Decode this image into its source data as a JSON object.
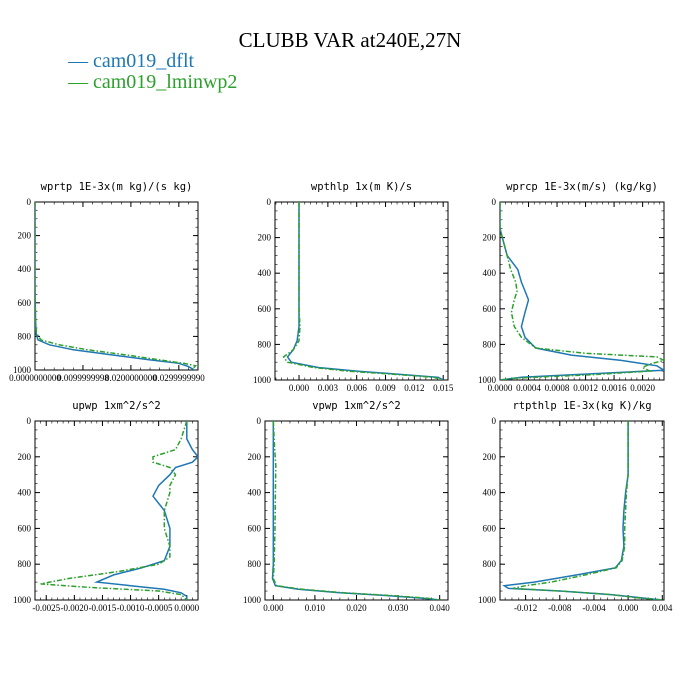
{
  "figure_title": "CLUBB VAR at240E,27N",
  "legend": [
    {
      "label": "cam019_dflt",
      "color": "#1f77b4",
      "dash": "solid"
    },
    {
      "label": "cam019_lminwp2",
      "color": "#2ca02c",
      "dash": "dashdot"
    }
  ],
  "chart_data": [
    {
      "type": "line",
      "title": "wprtp  1E-3x(m kg)/(s kg)",
      "xlim": [
        0,
        0.034
      ],
      "ylim": [
        1000,
        0
      ],
      "xticks": [
        0.0,
        0.0099999998,
        0.02,
        0.029999999
      ],
      "xtick_labels": [
        "0.0000000000",
        "0.0099999998",
        "0.0200000000",
        "0.0299999990"
      ],
      "yticks": [
        0,
        200,
        400,
        600,
        800,
        1000
      ],
      "series": [
        {
          "name": "cam019_dflt",
          "y": [
            0,
            100,
            300,
            500,
            700,
            780,
            820,
            850,
            880,
            910,
            940,
            960,
            980,
            995,
            1000
          ],
          "x": [
            0.0,
            0.0,
            0.0,
            0.0,
            0.0001,
            0.0002,
            0.0006,
            0.003,
            0.008,
            0.016,
            0.024,
            0.03,
            0.032,
            0.033,
            0.033
          ]
        },
        {
          "name": "cam019_lminwp2",
          "y": [
            0,
            100,
            300,
            500,
            700,
            780,
            820,
            850,
            880,
            910,
            940,
            960,
            975,
            990,
            1000
          ],
          "x": [
            0.0,
            0.0,
            0.0,
            0.0,
            0.0001,
            0.0003,
            0.0012,
            0.005,
            0.011,
            0.019,
            0.026,
            0.031,
            0.0335,
            0.033,
            0.033
          ]
        }
      ]
    },
    {
      "type": "line",
      "title": "wpthlp  1x(m K)/s",
      "xlim": [
        -0.0025,
        0.0155
      ],
      "ylim": [
        1000,
        0
      ],
      "xticks": [
        0.0,
        0.003,
        0.006,
        0.009,
        0.012,
        0.015
      ],
      "xtick_labels": [
        "0.000",
        "0.003",
        "0.006",
        "0.009",
        "0.012",
        "0.015"
      ],
      "yticks": [
        0,
        200,
        400,
        600,
        800,
        1000
      ],
      "series": [
        {
          "name": "cam019_dflt",
          "y": [
            0,
            200,
            400,
            600,
            700,
            780,
            830,
            870,
            900,
            930,
            950,
            970,
            985,
            1000
          ],
          "x": [
            0.0,
            0.0,
            0.0,
            0.0,
            0.0,
            -0.0002,
            -0.0006,
            -0.0012,
            -0.0008,
            0.002,
            0.006,
            0.011,
            0.0145,
            0.015
          ]
        },
        {
          "name": "cam019_lminwp2",
          "y": [
            0,
            200,
            400,
            600,
            700,
            780,
            830,
            870,
            900,
            930,
            950,
            970,
            985,
            1000
          ],
          "x": [
            0.0,
            0.0,
            0.0,
            0.0,
            0.0001,
            0.0,
            -0.0006,
            -0.0016,
            -0.0012,
            0.0015,
            0.005,
            0.0105,
            0.014,
            0.015
          ]
        }
      ]
    },
    {
      "type": "line",
      "title": "wprcp  1E-3x(m/s) (kg/kg)",
      "xlim": [
        0,
        0.0023
      ],
      "ylim": [
        1000,
        0
      ],
      "xticks": [
        0.0,
        0.0004,
        0.0008,
        0.0012,
        0.0016,
        0.002
      ],
      "xtick_labels": [
        "0.0000",
        "0.0004",
        "0.0008",
        "0.0012",
        "0.0016",
        "0.0020"
      ],
      "yticks": [
        0,
        200,
        400,
        600,
        800,
        1000
      ],
      "series": [
        {
          "name": "cam019_dflt",
          "y": [
            0,
            150,
            300,
            380,
            450,
            500,
            550,
            620,
            700,
            760,
            820,
            860,
            890,
            920,
            945,
            965,
            985,
            1000
          ],
          "x": [
            0.0,
            0.0,
            0.0001,
            0.00025,
            0.0003,
            0.00035,
            0.0004,
            0.00035,
            0.0003,
            0.00035,
            0.0005,
            0.001,
            0.0017,
            0.0022,
            0.0023,
            0.0013,
            0.0003,
            0.0
          ]
        },
        {
          "name": "cam019_lminwp2",
          "y": [
            0,
            150,
            300,
            380,
            450,
            500,
            550,
            620,
            700,
            760,
            820,
            850,
            870,
            890,
            910,
            930,
            950,
            970,
            990,
            1000
          ],
          "x": [
            0.0,
            0.0,
            0.0001,
            0.00015,
            0.00022,
            0.00024,
            0.0002,
            0.00016,
            0.0002,
            0.0003,
            0.0005,
            0.0012,
            0.0022,
            0.0023,
            0.0021,
            0.002,
            0.0021,
            0.0013,
            0.0002,
            0.0
          ]
        }
      ]
    },
    {
      "type": "line",
      "title": "upwp  1xm^2/s^2",
      "xlim": [
        -0.0027,
        0.0002
      ],
      "ylim": [
        1000,
        0
      ],
      "xticks": [
        -0.0025,
        -0.002,
        -0.0015,
        -0.001,
        -0.0005,
        0.0
      ],
      "xtick_labels": [
        "-0.0025",
        "-0.0020",
        "-0.0015",
        "-0.0010",
        "-0.0005",
        "0.0000"
      ],
      "yticks": [
        0,
        200,
        400,
        600,
        800,
        1000
      ],
      "series": [
        {
          "name": "cam019_dflt",
          "y": [
            0,
            100,
            160,
            200,
            230,
            260,
            300,
            360,
            420,
            500,
            600,
            700,
            780,
            820,
            860,
            900,
            920,
            940,
            960,
            980,
            1000
          ],
          "x": [
            0.0,
            0.0,
            0.0001,
            0.0002,
            0.0001,
            -0.0002,
            -0.0003,
            -0.0005,
            -0.0006,
            -0.0004,
            -0.0003,
            -0.0003,
            -0.0004,
            -0.0008,
            -0.0013,
            -0.0016,
            -0.001,
            -0.0004,
            -0.0001,
            0.0,
            0.0
          ]
        },
        {
          "name": "cam019_lminwp2",
          "y": [
            0,
            100,
            160,
            200,
            230,
            260,
            300,
            360,
            400,
            450,
            500,
            600,
            700,
            760,
            800,
            840,
            880,
            910,
            930,
            950,
            970,
            1000
          ],
          "x": [
            0.0,
            -0.0001,
            -0.0002,
            -0.0006,
            -0.0006,
            -0.0003,
            -0.0002,
            -0.0003,
            -0.0003,
            -0.00035,
            -0.0004,
            -0.0004,
            -0.0003,
            -0.0003,
            -0.0005,
            -0.0012,
            -0.0021,
            -0.0026,
            -0.0017,
            -0.0005,
            -0.0001,
            0.0
          ]
        }
      ]
    },
    {
      "type": "line",
      "title": "vpwp  1xm^2/s^2",
      "xlim": [
        -0.002,
        0.042
      ],
      "ylim": [
        1000,
        0
      ],
      "xticks": [
        0.0,
        0.01,
        0.02,
        0.03,
        0.04
      ],
      "xtick_labels": [
        "0.000",
        "0.010",
        "0.020",
        "0.030",
        "0.040"
      ],
      "yticks": [
        0,
        200,
        400,
        600,
        800,
        1000
      ],
      "series": [
        {
          "name": "cam019_dflt",
          "y": [
            0,
            200,
            400,
            600,
            800,
            880,
            920,
            940,
            960,
            975,
            990,
            1000
          ],
          "x": [
            0.0,
            0.0,
            0.0,
            0.0,
            0.0,
            -0.0002,
            0.0005,
            0.006,
            0.016,
            0.027,
            0.036,
            0.04
          ]
        },
        {
          "name": "cam019_lminwp2",
          "y": [
            0,
            150,
            250,
            400,
            600,
            800,
            880,
            920,
            940,
            960,
            975,
            990,
            1000
          ],
          "x": [
            0.0,
            0.0003,
            0.0006,
            0.0005,
            0.0004,
            0.0002,
            0.0,
            0.0008,
            0.007,
            0.017,
            0.028,
            0.037,
            0.04
          ]
        }
      ]
    },
    {
      "type": "line",
      "title": "rtpthlp  1E-3x(kg K)/kg",
      "xlim": [
        -0.015,
        0.0042
      ],
      "ylim": [
        1000,
        0
      ],
      "xticks": [
        -0.012,
        -0.008,
        -0.004,
        0.0,
        0.004
      ],
      "xtick_labels": [
        "-0.012",
        "-0.008",
        "-0.004",
        "0.000",
        "0.004"
      ],
      "yticks": [
        0,
        200,
        400,
        600,
        800,
        1000
      ],
      "series": [
        {
          "name": "cam019_dflt",
          "y": [
            0,
            200,
            300,
            400,
            500,
            600,
            700,
            780,
            820,
            860,
            900,
            920,
            935,
            950,
            970,
            990,
            1000
          ],
          "x": [
            0.0,
            0.0,
            0.0,
            -0.0003,
            -0.0005,
            -0.0006,
            -0.0005,
            -0.0008,
            -0.0015,
            -0.006,
            -0.011,
            -0.0145,
            -0.014,
            -0.008,
            -0.002,
            0.002,
            0.004
          ]
        },
        {
          "name": "cam019_lminwp2",
          "y": [
            0,
            200,
            300,
            400,
            500,
            600,
            700,
            780,
            820,
            860,
            900,
            920,
            935,
            950,
            970,
            990,
            1000
          ],
          "x": [
            0.0,
            0.0,
            0.0,
            -0.0002,
            -0.0003,
            -0.0004,
            -0.0004,
            -0.0007,
            -0.0014,
            -0.005,
            -0.009,
            -0.012,
            -0.0135,
            -0.008,
            -0.002,
            0.0015,
            0.004
          ]
        }
      ]
    }
  ]
}
